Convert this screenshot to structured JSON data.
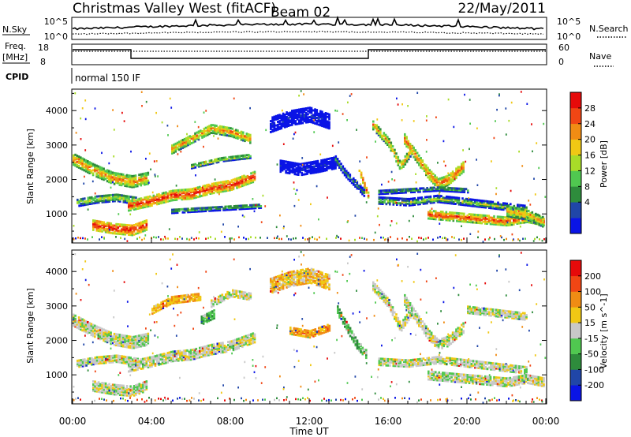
{
  "header": {
    "title": "Christmas Valley West (fitACF)",
    "beam": "Beam 02",
    "date": "22/May/2011"
  },
  "noise_panel": {
    "left_label": "N.Sky",
    "right_label": "N.Search",
    "left_ticks": [
      "10^5",
      "10^0"
    ],
    "right_ticks": [
      "10^5",
      "10^0"
    ]
  },
  "freq_panel": {
    "left_label_1": "Freq.",
    "left_label_2": "[MHz]",
    "right_label": "Nave",
    "left_ticks": [
      "18",
      "8"
    ],
    "right_ticks": [
      "60",
      "0"
    ]
  },
  "cpid": {
    "label": "CPID",
    "mode": "normal 150 IF"
  },
  "chart_data": [
    {
      "type": "heatmap",
      "name": "power",
      "ylabel": "Slant Range [km]",
      "xlabel": "",
      "ylim": [
        180,
        4600
      ],
      "y_ticks": [
        "4000",
        "3000",
        "2000",
        "1000"
      ],
      "colorbar_label": "Power [dB]",
      "colorbar_ticks": [
        "28",
        "24",
        "20",
        "16",
        "12",
        "8",
        "4"
      ],
      "colors": [
        "#0a14e6",
        "#2046a8",
        "#2e8c3c",
        "#50c850",
        "#a8dc28",
        "#f0c814",
        "#f08c14",
        "#f04614",
        "#e60a0a"
      ],
      "bands": [
        {
          "t": [
            0,
            1,
            2,
            3,
            3.8
          ],
          "r": [
            2600,
            2300,
            2050,
            1950,
            2050
          ],
          "w": 320,
          "level": 0.78
        },
        {
          "t": [
            0.2,
            1.2,
            2.2,
            3.3
          ],
          "r": [
            1350,
            1450,
            1500,
            1400
          ],
          "w": 220,
          "level": 0.55
        },
        {
          "t": [
            1,
            2,
            3,
            3.7
          ],
          "r": [
            700,
            600,
            550,
            700
          ],
          "w": 300,
          "level": 0.95
        },
        {
          "t": [
            2.8,
            4,
            5,
            6,
            7,
            8,
            9.2
          ],
          "r": [
            1250,
            1400,
            1550,
            1600,
            1750,
            1850,
            2100
          ],
          "w": 280,
          "level": 0.92
        },
        {
          "t": [
            5,
            6,
            7,
            8,
            9
          ],
          "r": [
            2900,
            3200,
            3500,
            3400,
            3200
          ],
          "w": 260,
          "level": 0.75
        },
        {
          "t": [
            5,
            6.5,
            8,
            9.5
          ],
          "r": [
            1100,
            1150,
            1200,
            1250
          ],
          "w": 120,
          "level": 0.45
        },
        {
          "t": [
            6,
            7.5,
            9
          ],
          "r": [
            2400,
            2600,
            2700
          ],
          "w": 120,
          "level": 0.6
        },
        {
          "t": [
            10,
            11,
            12,
            13
          ],
          "r": [
            3600,
            3800,
            3900,
            3700
          ],
          "w": 420,
          "level": 0.12
        },
        {
          "t": [
            10.5,
            11.5,
            12.5,
            13.3
          ],
          "r": [
            2400,
            2300,
            2400,
            2500
          ],
          "w": 320,
          "level": 0.1
        },
        {
          "t": [
            13.3,
            13.8,
            14.3,
            14.8
          ],
          "r": [
            2600,
            2200,
            1900,
            1600
          ],
          "w": 200,
          "level": 0.35
        },
        {
          "t": [
            14.5,
            14.8,
            15
          ],
          "r": [
            2300,
            1800,
            1500
          ],
          "w": 160,
          "level": 0.92
        },
        {
          "t": [
            15.2,
            16,
            16.6,
            17.2
          ],
          "r": [
            3600,
            3100,
            2400,
            2900
          ],
          "w": 260,
          "level": 0.72
        },
        {
          "t": [
            16.8,
            17.5,
            18,
            18.5,
            19,
            19.8
          ],
          "r": [
            3200,
            2600,
            2200,
            1900,
            2000,
            2400
          ],
          "w": 300,
          "level": 0.82
        },
        {
          "t": [
            15.5,
            17,
            18.5,
            20,
            21.5,
            23
          ],
          "r": [
            1400,
            1350,
            1450,
            1350,
            1250,
            1150
          ],
          "w": 180,
          "level": 0.5
        },
        {
          "t": [
            18,
            19,
            20,
            21,
            22,
            23,
            23.9
          ],
          "r": [
            1000,
            950,
            900,
            850,
            800,
            900,
            800
          ],
          "w": 240,
          "level": 0.88
        },
        {
          "t": [
            15.5,
            17,
            18.5,
            20
          ],
          "r": [
            1650,
            1700,
            1750,
            1700
          ],
          "w": 120,
          "level": 0.4
        },
        {
          "t": [
            22,
            23,
            23.8
          ],
          "r": [
            1100,
            1000,
            800
          ],
          "w": 300,
          "level": 0.7
        }
      ]
    },
    {
      "type": "heatmap",
      "name": "velocity",
      "ylabel": "Slant Range [km]",
      "xlabel": "Time UT",
      "ylim": [
        180,
        4600
      ],
      "y_ticks": [
        "4000",
        "3000",
        "2000",
        "1000"
      ],
      "x_ticks": [
        "00:00",
        "04:00",
        "08:00",
        "12:00",
        "16:00",
        "20:00",
        "00:00"
      ],
      "colorbar_label": "Velocity [m s^-1]",
      "colorbar_ticks": [
        "200",
        "100",
        "50",
        "15",
        "-15",
        "-50",
        "-100",
        "-200"
      ],
      "colors": [
        "#0a14e6",
        "#2046a8",
        "#2e8c3c",
        "#50c850",
        "#c8c8c8",
        "#f0c814",
        "#f08c14",
        "#f04614",
        "#e60a0a"
      ],
      "bands": [
        {
          "t": [
            0,
            1,
            2,
            3,
            3.8
          ],
          "r": [
            2600,
            2300,
            2050,
            1950,
            2050
          ],
          "w": 320,
          "level": 0.5
        },
        {
          "t": [
            0.2,
            1.2,
            2.2,
            3.3
          ],
          "r": [
            1350,
            1450,
            1500,
            1400
          ],
          "w": 220,
          "level": 0.5
        },
        {
          "t": [
            1,
            2,
            3,
            3.7
          ],
          "r": [
            700,
            600,
            550,
            700
          ],
          "w": 300,
          "level": 0.5
        },
        {
          "t": [
            2.8,
            4,
            5,
            6,
            7,
            8,
            9.2
          ],
          "r": [
            1250,
            1400,
            1550,
            1600,
            1750,
            1850,
            2100
          ],
          "w": 280,
          "level": 0.5
        },
        {
          "t": [
            4,
            5,
            6.5
          ],
          "r": [
            2900,
            3200,
            3300
          ],
          "w": 220,
          "level": 0.66
        },
        {
          "t": [
            7,
            8,
            9
          ],
          "r": [
            3100,
            3400,
            3300
          ],
          "w": 220,
          "level": 0.5
        },
        {
          "t": [
            6.5,
            7.2
          ],
          "r": [
            2600,
            2800
          ],
          "w": 250,
          "level": 0.36
        },
        {
          "t": [
            10,
            11,
            12,
            13
          ],
          "r": [
            3600,
            3800,
            3900,
            3700
          ],
          "w": 420,
          "level": 0.62
        },
        {
          "t": [
            11,
            12,
            13
          ],
          "r": [
            2300,
            2200,
            2400
          ],
          "w": 200,
          "level": 0.7
        },
        {
          "t": [
            13.4,
            13.9,
            14.4,
            14.9
          ],
          "r": [
            2900,
            2400,
            1900,
            1600
          ],
          "w": 260,
          "level": 0.36
        },
        {
          "t": [
            15.2,
            16,
            16.6,
            17.2
          ],
          "r": [
            3600,
            3100,
            2400,
            2900
          ],
          "w": 260,
          "level": 0.5
        },
        {
          "t": [
            16.8,
            17.5,
            18,
            18.5,
            19,
            19.8
          ],
          "r": [
            3200,
            2600,
            2200,
            1900,
            2000,
            2400
          ],
          "w": 300,
          "level": 0.5
        },
        {
          "t": [
            15.5,
            17,
            18.5,
            20,
            21.5,
            23
          ],
          "r": [
            1400,
            1350,
            1450,
            1350,
            1250,
            1150
          ],
          "w": 200,
          "level": 0.5
        },
        {
          "t": [
            18,
            19,
            20,
            21,
            22,
            23,
            23.9
          ],
          "r": [
            1000,
            950,
            900,
            850,
            800,
            900,
            800
          ],
          "w": 240,
          "level": 0.5
        },
        {
          "t": [
            20,
            21.5,
            23
          ],
          "r": [
            2900,
            2800,
            2700
          ],
          "w": 180,
          "level": 0.5
        }
      ]
    }
  ]
}
